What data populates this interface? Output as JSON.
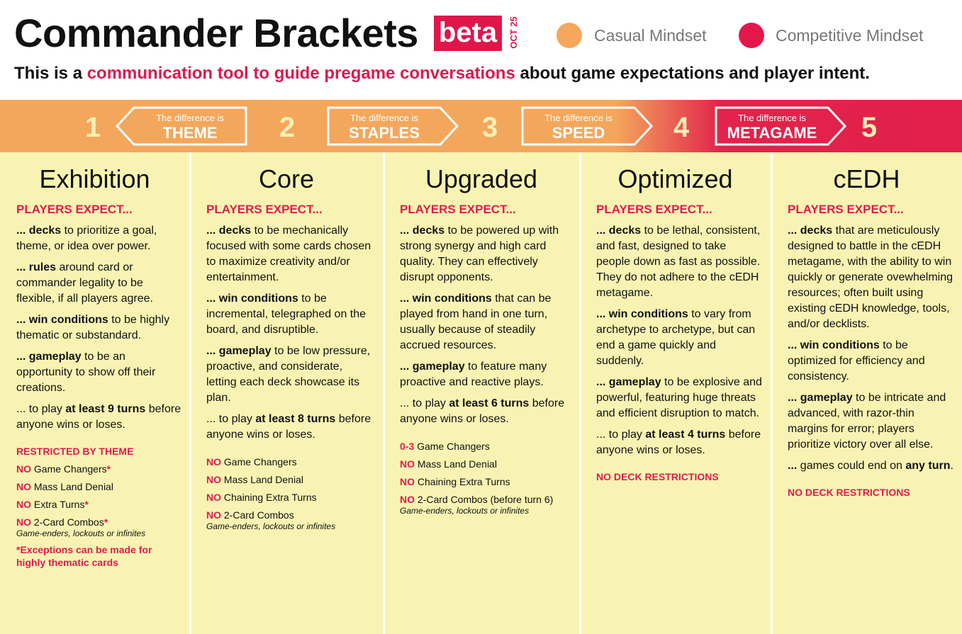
{
  "header": {
    "title": "Commander Brackets",
    "badge": "beta",
    "date": "OCT 25",
    "legend": [
      "Casual Mindset",
      "Competitive Mindset"
    ],
    "subtitle": [
      "This is a ",
      "communication tool to guide pregame conversations",
      " about game expectations and player intent."
    ]
  },
  "band": {
    "numbers": [
      "1",
      "2",
      "3",
      "4",
      "5"
    ],
    "differences": [
      {
        "prefix": "The difference is",
        "word": "THEME"
      },
      {
        "prefix": "The difference is",
        "word": "STAPLES"
      },
      {
        "prefix": "The difference is",
        "word": "SPEED"
      },
      {
        "prefix": "The difference is",
        "word": "METAGAME"
      }
    ]
  },
  "columns": [
    {
      "name": "Exhibition",
      "expect_heading": "PLAYERS EXPECT...",
      "expectations": [
        [
          {
            "text": "... decks",
            "style": "bold"
          },
          " to prioritize a goal, theme, or idea over power."
        ],
        [
          {
            "text": "... rules",
            "style": "bold"
          },
          " around card or commander legality to be flexible, if all players agree."
        ],
        [
          {
            "text": "... win conditions",
            "style": "bold"
          },
          " to be highly thematic or substandard."
        ],
        [
          {
            "text": "... gameplay",
            "style": "bold"
          },
          " to be an opportunity to show off their creations."
        ],
        [
          "... to play ",
          {
            "text": "at least 9 turns",
            "style": "bold"
          },
          " before anyone wins or loses."
        ]
      ],
      "restrictions_heading": "RESTRICTED BY THEME",
      "restrictions": [
        [
          {
            "text": "NO",
            "style": "red"
          },
          " Game Changers",
          {
            "text": "*",
            "style": "red"
          }
        ],
        [
          {
            "text": "NO",
            "style": "red"
          },
          " Mass Land Denial"
        ],
        [
          {
            "text": "NO",
            "style": "red"
          },
          " Extra Turns",
          {
            "text": "*",
            "style": "red"
          }
        ],
        [
          {
            "text": "NO",
            "style": "red"
          },
          " 2-Card Combos",
          {
            "text": "*",
            "style": "red"
          }
        ],
        [
          {
            "text": "Game-enders, lockouts or infinites",
            "style": "italic"
          }
        ],
        [
          {
            "text": "*Exceptions can be made for highly thematic cards",
            "style": "red"
          }
        ]
      ]
    },
    {
      "name": "Core",
      "expect_heading": "PLAYERS EXPECT...",
      "expectations": [
        [
          {
            "text": "... decks",
            "style": "bold"
          },
          " to be mechanically focused with some cards chosen to maximize creativity and/or entertainment."
        ],
        [
          {
            "text": "... win conditions",
            "style": "bold"
          },
          " to be incremental, telegraphed on the board, and disruptible."
        ],
        [
          {
            "text": "... gameplay",
            "style": "bold"
          },
          " to be low pressure, proactive, and considerate, letting each deck showcase its plan."
        ],
        [
          "... to play ",
          {
            "text": "at least 8 turns",
            "style": "bold"
          },
          " before anyone wins or loses."
        ]
      ],
      "restrictions": [
        [
          {
            "text": "NO",
            "style": "red"
          },
          " Game Changers"
        ],
        [
          {
            "text": "NO",
            "style": "red"
          },
          " Mass Land Denial"
        ],
        [
          {
            "text": "NO",
            "style": "red"
          },
          " Chaining Extra Turns"
        ],
        [
          {
            "text": "NO",
            "style": "red"
          },
          " 2-Card Combos"
        ],
        [
          {
            "text": "Game-enders, lockouts or infinites",
            "style": "italic"
          }
        ]
      ]
    },
    {
      "name": "Upgraded",
      "expect_heading": "PLAYERS EXPECT...",
      "expectations": [
        [
          {
            "text": "... decks",
            "style": "bold"
          },
          " to be powered up with strong synergy and high card quality. They can effectively disrupt opponents."
        ],
        [
          {
            "text": "... win conditions",
            "style": "bold"
          },
          " that can be played from hand in one turn, usually because of steadily accrued resources."
        ],
        [
          {
            "text": "... gameplay",
            "style": "bold"
          },
          " to feature many proactive and reactive plays."
        ],
        [
          "... to play ",
          {
            "text": "at least 6 turns",
            "style": "bold"
          },
          " before anyone wins or loses."
        ]
      ],
      "restrictions": [
        [
          {
            "text": "0-3",
            "style": "red"
          },
          " Game Changers"
        ],
        [
          {
            "text": "NO",
            "style": "red"
          },
          " Mass Land Denial"
        ],
        [
          {
            "text": "NO",
            "style": "red"
          },
          " Chaining Extra Turns"
        ],
        [
          {
            "text": "NO",
            "style": "red"
          },
          " 2-Card Combos (before turn 6)"
        ],
        [
          {
            "text": "Game-enders, lockouts or infinites",
            "style": "italic"
          }
        ]
      ]
    },
    {
      "name": "Optimized",
      "expect_heading": "PLAYERS EXPECT...",
      "expectations": [
        [
          {
            "text": "... decks",
            "style": "bold"
          },
          " to be lethal, consistent, and fast, designed to take people down as fast as possible. They do not adhere to the cEDH metagame."
        ],
        [
          {
            "text": "... win conditions",
            "style": "bold"
          },
          " to vary from archetype to archetype, but can end a game quickly and suddenly."
        ],
        [
          {
            "text": "... gameplay",
            "style": "bold"
          },
          " to be explosive and powerful, featuring huge threats and efficient disruption to match."
        ],
        [
          "... to play ",
          {
            "text": "at least 4 turns",
            "style": "bold"
          },
          " before anyone wins or loses."
        ]
      ],
      "restrictions_heading": "NO DECK RESTRICTIONS"
    },
    {
      "name": "cEDH",
      "expect_heading": "PLAYERS EXPECT...",
      "expectations": [
        [
          {
            "text": "... decks",
            "style": "bold"
          },
          " that are meticulously designed to battle in the cEDH metagame, with the ability to win quickly or generate ovewhelming resources; often built using existing cEDH knowledge, tools, and/or decklists."
        ],
        [
          {
            "text": "... win conditions",
            "style": "bold"
          },
          " to be optimized for efficiency and consistency."
        ],
        [
          {
            "text": "... gameplay",
            "style": "bold"
          },
          " to be intricate and advanced, with razor-thin margins for error; players prioritize victory over all else."
        ],
        [
          {
            "text": "...",
            "style": "bold"
          },
          " games could end on ",
          {
            "text": "any turn",
            "style": "bold"
          },
          "."
        ]
      ],
      "restrictions_heading": "NO DECK RESTRICTIONS"
    }
  ]
}
